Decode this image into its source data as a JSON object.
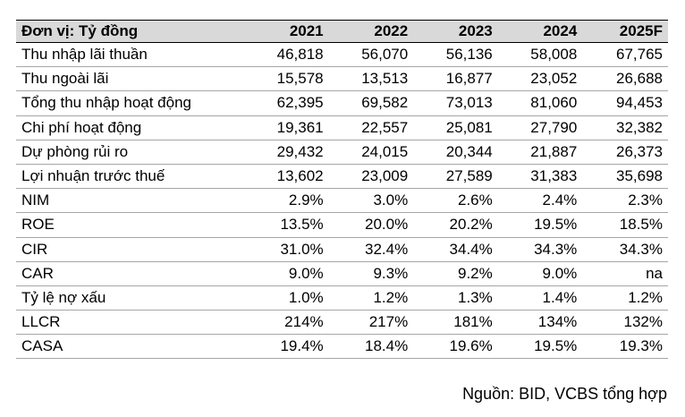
{
  "table": {
    "unit_header": "Đơn vị: Tỷ đồng",
    "years": [
      "2021",
      "2022",
      "2023",
      "2024",
      "2025F"
    ],
    "rows": [
      {
        "label": "Thu nhập lãi thuần",
        "values": [
          "46,818",
          "56,070",
          "56,136",
          "58,008",
          "67,765"
        ]
      },
      {
        "label": "Thu ngoài lãi",
        "values": [
          "15,578",
          "13,513",
          "16,877",
          "23,052",
          "26,688"
        ]
      },
      {
        "label": "Tổng thu nhập hoạt động",
        "values": [
          "62,395",
          "69,582",
          "73,013",
          "81,060",
          "94,453"
        ]
      },
      {
        "label": "Chi phí hoạt động",
        "values": [
          "19,361",
          "22,557",
          "25,081",
          "27,790",
          "32,382"
        ]
      },
      {
        "label": "Dự phòng rủi ro",
        "values": [
          "29,432",
          "24,015",
          "20,344",
          "21,887",
          "26,373"
        ]
      },
      {
        "label": "Lợi nhuận trước thuế",
        "values": [
          "13,602",
          "23,009",
          "27,589",
          "31,383",
          "35,698"
        ]
      },
      {
        "label": "NIM",
        "values": [
          "2.9%",
          "3.0%",
          "2.6%",
          "2.4%",
          "2.3%"
        ]
      },
      {
        "label": "ROE",
        "values": [
          "13.5%",
          "20.0%",
          "20.2%",
          "19.5%",
          "18.5%"
        ]
      },
      {
        "label": "CIR",
        "values": [
          "31.0%",
          "32.4%",
          "34.4%",
          "34.3%",
          "34.3%"
        ]
      },
      {
        "label": "CAR",
        "values": [
          "9.0%",
          "9.3%",
          "9.2%",
          "9.0%",
          "na"
        ]
      },
      {
        "label": "Tỷ lệ nợ xấu",
        "values": [
          "1.0%",
          "1.2%",
          "1.3%",
          "1.4%",
          "1.2%"
        ]
      },
      {
        "label": "LLCR",
        "values": [
          "214%",
          "217%",
          "181%",
          "134%",
          "132%"
        ]
      },
      {
        "label": "CASA",
        "values": [
          "19.4%",
          "18.4%",
          "19.6%",
          "19.5%",
          "19.3%"
        ]
      }
    ]
  },
  "source": "Nguồn: BID, VCBS tổng hợp",
  "colors": {
    "header_bg": "#d9d9d9",
    "row_border": "#a6a6a6",
    "text": "#000000"
  }
}
